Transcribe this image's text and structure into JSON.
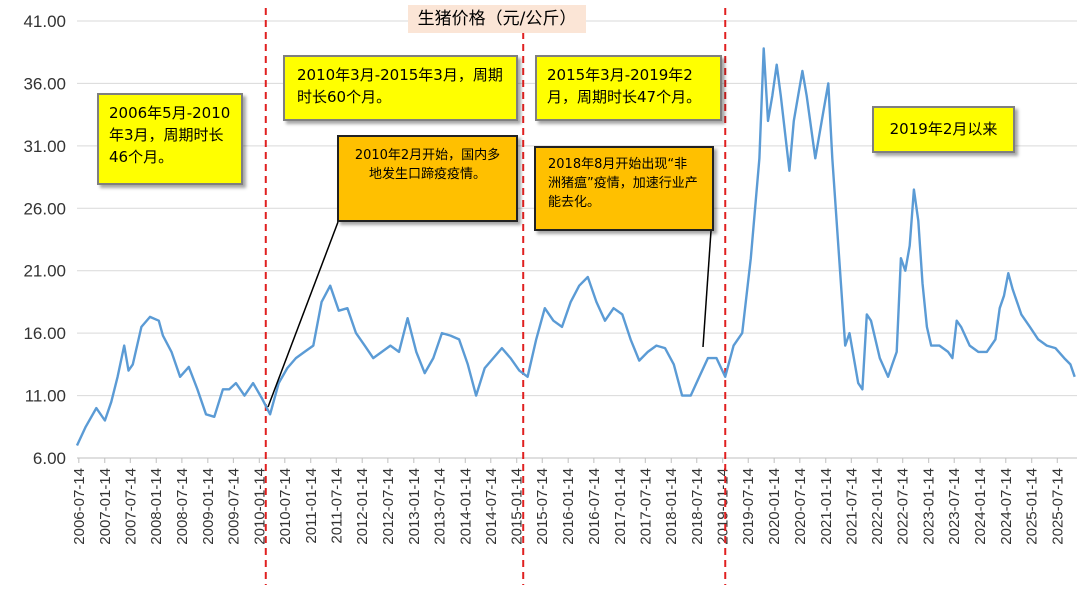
{
  "chart_data": {
    "type": "line",
    "title": "生猪价格（元/公斤）",
    "ylim": [
      6,
      41
    ],
    "yticks": [
      "6.00",
      "11.00",
      "16.00",
      "21.00",
      "26.00",
      "31.00",
      "36.00",
      "41.00"
    ],
    "xticks": [
      "2006-07-14",
      "2007-01-14",
      "2007-07-14",
      "2008-01-14",
      "2008-07-14",
      "2009-01-14",
      "2009-07-14",
      "2010-01-14",
      "2010-07-14",
      "2011-01-14",
      "2011-07-14",
      "2012-01-14",
      "2012-07-14",
      "2013-01-14",
      "2013-07-14",
      "2014-01-14",
      "2014-07-14",
      "2015-01-14",
      "2015-07-14",
      "2016-01-14",
      "2016-07-14",
      "2017-01-14",
      "2017-07-14",
      "2018-01-14",
      "2018-07-14",
      "2019-01-14",
      "2019-07-14",
      "2020-01-14",
      "2020-07-14",
      "2021-01-14",
      "2021-07-14",
      "2022-01-14",
      "2022-07-14",
      "2023-01-14",
      "2023-07-14",
      "2024-01-14",
      "2024-07-14",
      "2025-01-14",
      "2025-07-14"
    ],
    "divider_dates": [
      "2010-03-01",
      "2015-03-01",
      "2019-02-01"
    ],
    "series": [
      {
        "color": "#5b9bd5",
        "points": [
          [
            "2006-07-01",
            7.0
          ],
          [
            "2006-09-01",
            8.5
          ],
          [
            "2006-11-15",
            10.0
          ],
          [
            "2007-01-15",
            9.0
          ],
          [
            "2007-03-01",
            10.5
          ],
          [
            "2007-04-15",
            12.5
          ],
          [
            "2007-06-01",
            15.0
          ],
          [
            "2007-07-01",
            13.0
          ],
          [
            "2007-08-01",
            13.5
          ],
          [
            "2007-10-01",
            16.5
          ],
          [
            "2007-12-01",
            17.3
          ],
          [
            "2008-02-01",
            17.0
          ],
          [
            "2008-03-01",
            15.8
          ],
          [
            "2008-05-01",
            14.5
          ],
          [
            "2008-07-01",
            12.5
          ],
          [
            "2008-09-01",
            13.3
          ],
          [
            "2008-11-01",
            11.5
          ],
          [
            "2009-01-01",
            9.5
          ],
          [
            "2009-03-01",
            9.3
          ],
          [
            "2009-05-01",
            11.5
          ],
          [
            "2009-06-15",
            11.5
          ],
          [
            "2009-08-01",
            12.0
          ],
          [
            "2009-10-01",
            11.0
          ],
          [
            "2009-12-01",
            12.0
          ],
          [
            "2010-02-01",
            10.8
          ],
          [
            "2010-04-01",
            9.5
          ],
          [
            "2010-06-01",
            12.0
          ],
          [
            "2010-08-01",
            13.2
          ],
          [
            "2010-10-01",
            14.0
          ],
          [
            "2010-12-01",
            14.5
          ],
          [
            "2011-02-01",
            15.0
          ],
          [
            "2011-04-01",
            18.5
          ],
          [
            "2011-06-01",
            19.8
          ],
          [
            "2011-08-01",
            17.8
          ],
          [
            "2011-10-01",
            18.0
          ],
          [
            "2011-12-01",
            16.0
          ],
          [
            "2012-02-01",
            15.0
          ],
          [
            "2012-04-01",
            14.0
          ],
          [
            "2012-06-01",
            14.5
          ],
          [
            "2012-08-01",
            15.0
          ],
          [
            "2012-10-01",
            14.5
          ],
          [
            "2012-12-01",
            17.2
          ],
          [
            "2013-02-01",
            14.5
          ],
          [
            "2013-04-01",
            12.8
          ],
          [
            "2013-06-01",
            14.0
          ],
          [
            "2013-08-01",
            16.0
          ],
          [
            "2013-10-01",
            15.8
          ],
          [
            "2013-12-01",
            15.5
          ],
          [
            "2014-02-01",
            13.5
          ],
          [
            "2014-04-01",
            11.0
          ],
          [
            "2014-06-01",
            13.2
          ],
          [
            "2014-08-01",
            14.0
          ],
          [
            "2014-10-01",
            14.8
          ],
          [
            "2014-12-01",
            14.0
          ],
          [
            "2015-02-01",
            13.0
          ],
          [
            "2015-04-01",
            12.5
          ],
          [
            "2015-06-01",
            15.5
          ],
          [
            "2015-08-01",
            18.0
          ],
          [
            "2015-10-01",
            17.0
          ],
          [
            "2015-12-01",
            16.5
          ],
          [
            "2016-02-01",
            18.5
          ],
          [
            "2016-04-01",
            19.8
          ],
          [
            "2016-06-01",
            20.5
          ],
          [
            "2016-08-01",
            18.5
          ],
          [
            "2016-10-01",
            17.0
          ],
          [
            "2016-12-01",
            18.0
          ],
          [
            "2017-02-01",
            17.5
          ],
          [
            "2017-04-01",
            15.5
          ],
          [
            "2017-06-01",
            13.8
          ],
          [
            "2017-08-01",
            14.5
          ],
          [
            "2017-10-01",
            15.0
          ],
          [
            "2017-12-01",
            14.8
          ],
          [
            "2018-02-01",
            13.5
          ],
          [
            "2018-04-01",
            11.0
          ],
          [
            "2018-06-01",
            11.0
          ],
          [
            "2018-08-01",
            12.5
          ],
          [
            "2018-10-01",
            14.0
          ],
          [
            "2018-12-01",
            14.0
          ],
          [
            "2019-02-01",
            12.5
          ],
          [
            "2019-04-01",
            15.0
          ],
          [
            "2019-06-01",
            16.0
          ],
          [
            "2019-08-01",
            22.0
          ],
          [
            "2019-10-01",
            30.0
          ],
          [
            "2019-11-01",
            38.8
          ],
          [
            "2019-12-01",
            33.0
          ],
          [
            "2020-01-01",
            35.0
          ],
          [
            "2020-02-01",
            37.5
          ],
          [
            "2020-03-01",
            35.0
          ],
          [
            "2020-05-01",
            29.0
          ],
          [
            "2020-06-01",
            33.0
          ],
          [
            "2020-08-01",
            37.0
          ],
          [
            "2020-09-01",
            35.0
          ],
          [
            "2020-11-01",
            30.0
          ],
          [
            "2021-01-01",
            34.0
          ],
          [
            "2021-02-01",
            36.0
          ],
          [
            "2021-03-01",
            30.0
          ],
          [
            "2021-05-01",
            20.0
          ],
          [
            "2021-06-01",
            15.0
          ],
          [
            "2021-07-01",
            16.0
          ],
          [
            "2021-09-01",
            12.0
          ],
          [
            "2021-10-01",
            11.5
          ],
          [
            "2021-11-01",
            17.5
          ],
          [
            "2021-12-01",
            17.0
          ],
          [
            "2022-02-01",
            14.0
          ],
          [
            "2022-04-01",
            12.5
          ],
          [
            "2022-05-01",
            13.5
          ],
          [
            "2022-06-01",
            14.5
          ],
          [
            "2022-07-01",
            22.0
          ],
          [
            "2022-08-01",
            21.0
          ],
          [
            "2022-09-01",
            23.0
          ],
          [
            "2022-10-01",
            27.5
          ],
          [
            "2022-11-01",
            25.0
          ],
          [
            "2022-12-01",
            20.0
          ],
          [
            "2023-01-01",
            16.5
          ],
          [
            "2023-02-01",
            15.0
          ],
          [
            "2023-04-01",
            15.0
          ],
          [
            "2023-06-01",
            14.5
          ],
          [
            "2023-07-01",
            14.0
          ],
          [
            "2023-08-01",
            17.0
          ],
          [
            "2023-09-01",
            16.5
          ],
          [
            "2023-11-01",
            15.0
          ],
          [
            "2024-01-01",
            14.5
          ],
          [
            "2024-03-01",
            14.5
          ],
          [
            "2024-05-01",
            15.5
          ],
          [
            "2024-06-01",
            18.0
          ],
          [
            "2024-07-01",
            19.0
          ],
          [
            "2024-08-01",
            20.8
          ],
          [
            "2024-09-01",
            19.5
          ],
          [
            "2024-11-01",
            17.5
          ],
          [
            "2025-01-01",
            16.5
          ],
          [
            "2025-03-01",
            15.5
          ],
          [
            "2025-05-01",
            15.0
          ],
          [
            "2025-07-01",
            14.8
          ],
          [
            "2025-09-01",
            14.0
          ],
          [
            "2025-10-15",
            13.5
          ],
          [
            "2025-11-15",
            12.5
          ]
        ]
      }
    ],
    "annotations": [
      {
        "text": "2006年5月-2010年3月，周期时长46个月。",
        "style": "yellow"
      },
      {
        "text": "2010年3月-2015年3月，周期时长60个月。",
        "style": "yellow"
      },
      {
        "text": "2015年3月-2019年2月，周期时长47个月。",
        "style": "yellow"
      },
      {
        "text": "2019年2月以来",
        "style": "yellow"
      },
      {
        "text": "2010年2月开始，国内多地发生口蹄疫疫情。",
        "style": "orange"
      },
      {
        "text": "2018年8月开始出现“非洲猪瘟”疫情，加速行业产能去化。",
        "style": "orange"
      }
    ]
  }
}
